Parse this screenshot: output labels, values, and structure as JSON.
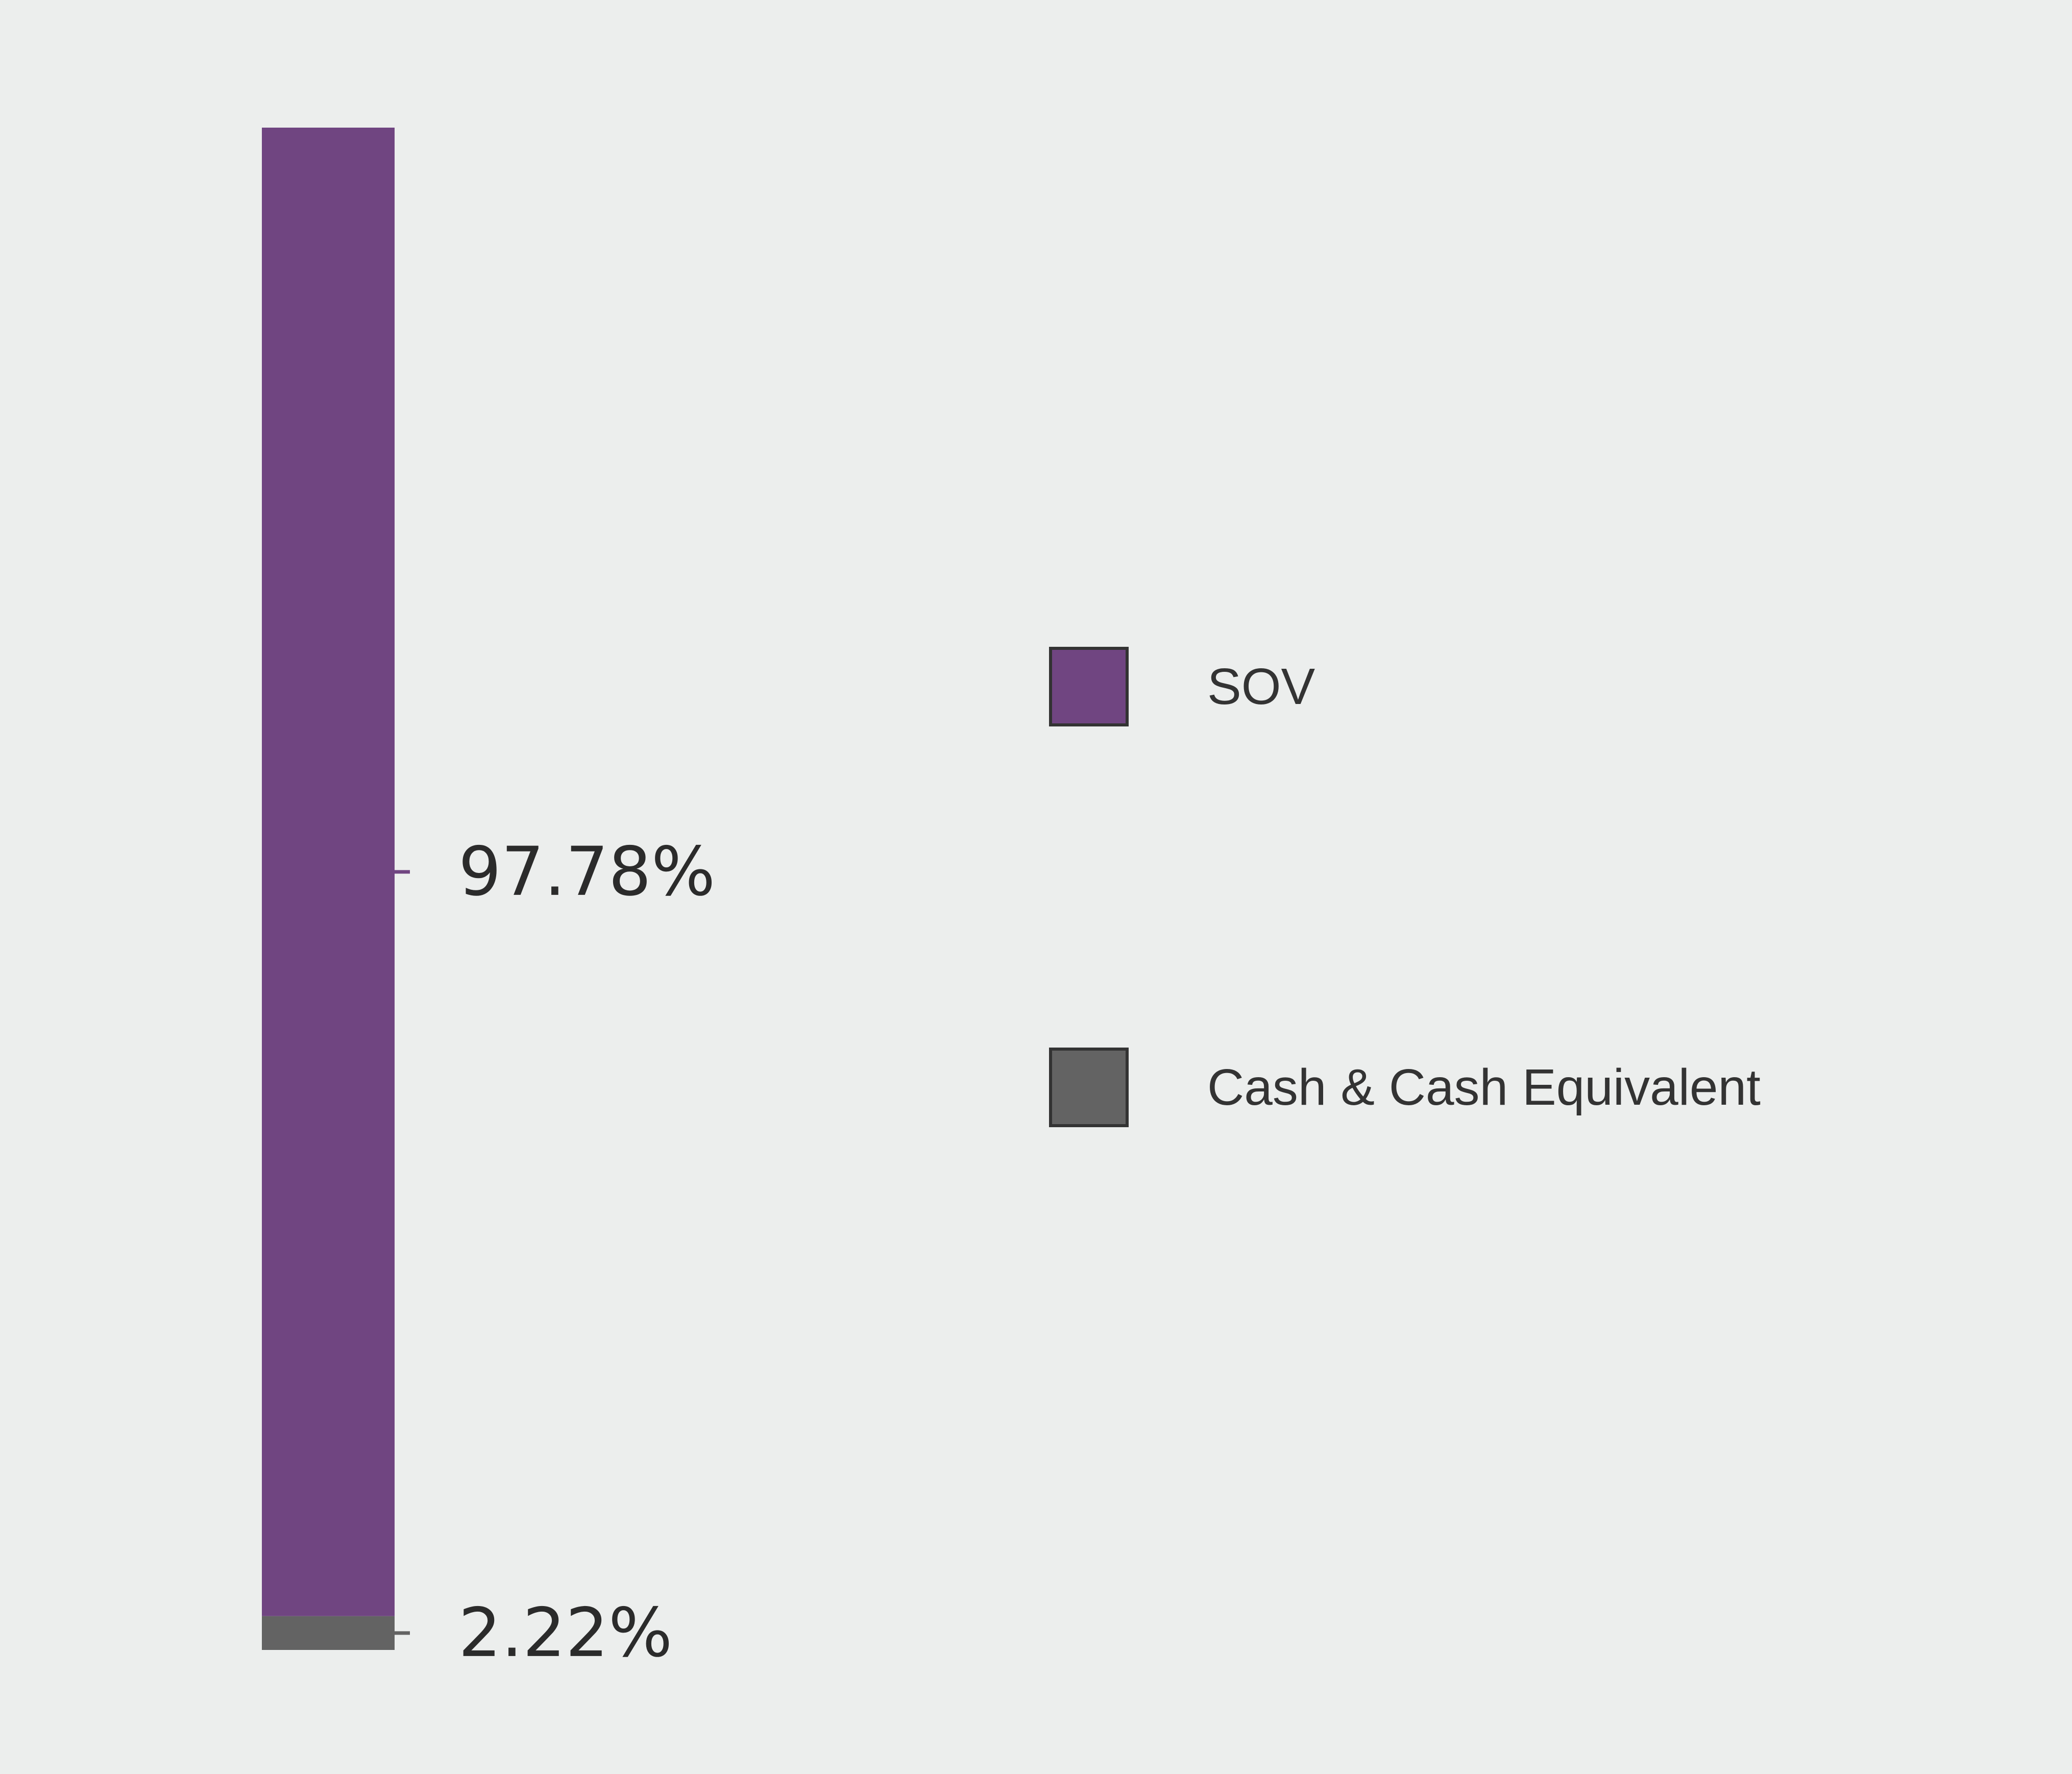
{
  "chart_data": {
    "type": "bar",
    "stacked": true,
    "categories": [
      ""
    ],
    "series": [
      {
        "name": "SOV",
        "values": [
          97.78
        ],
        "label": "97.78%",
        "color": "#704581"
      },
      {
        "name": "Cash & Cash Equivalent",
        "values": [
          2.22
        ],
        "label": "2.22%",
        "color": "#636363"
      }
    ],
    "title": "",
    "xlabel": "",
    "ylabel": "",
    "ylim": [
      0,
      100
    ],
    "grid": false,
    "legend_position": "right"
  }
}
